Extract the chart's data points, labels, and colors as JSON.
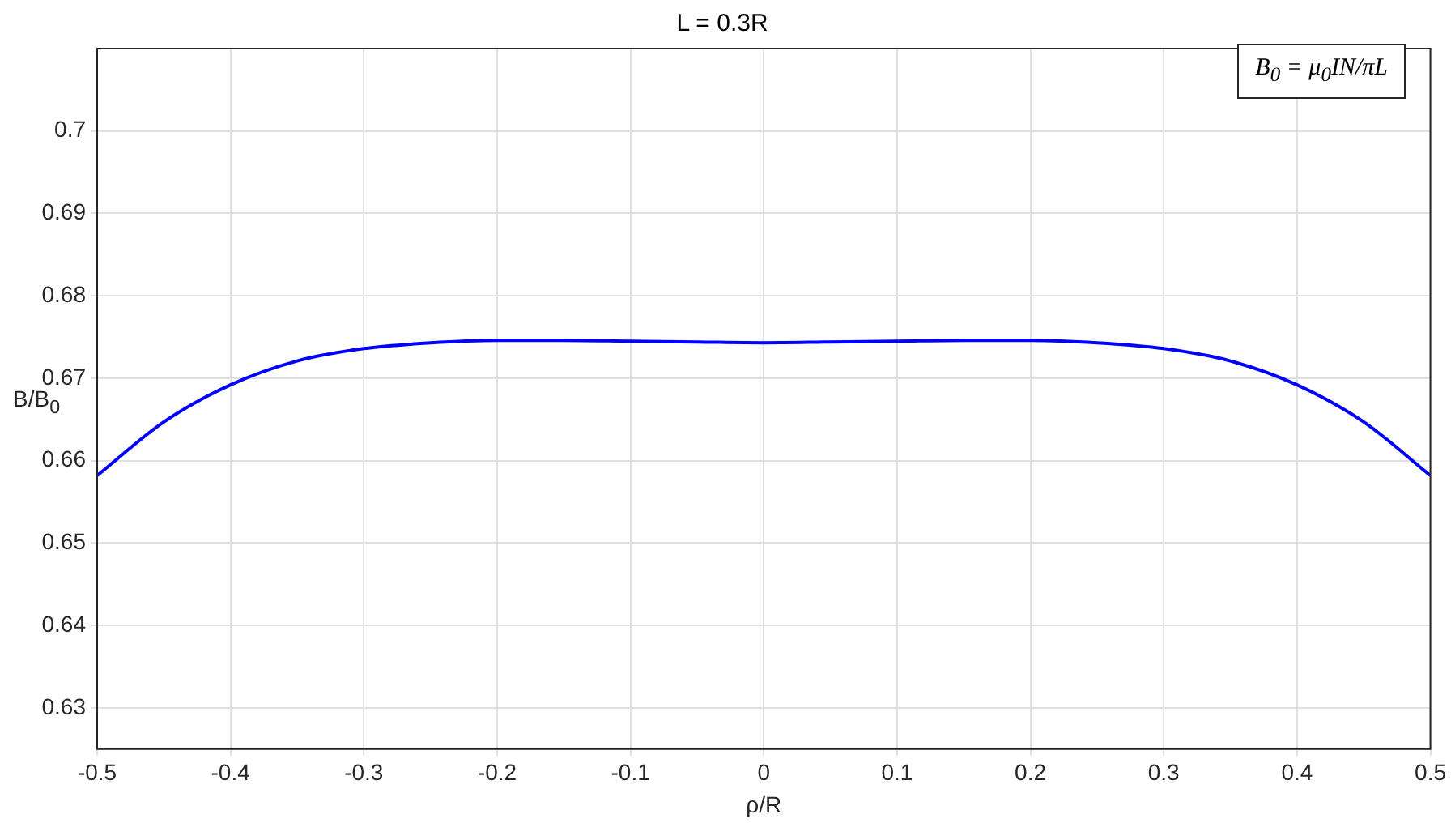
{
  "chart_data": {
    "type": "line",
    "title": "L = 0.3R",
    "xlabel": "ρ/R",
    "ylabel": "B/B$_{0}$",
    "annotations": [
      "B$_{0}$ = μ$_{0}$IN/πL"
    ],
    "x": [
      -0.5,
      -0.45,
      -0.4,
      -0.35,
      -0.3,
      -0.25,
      -0.2,
      -0.15,
      -0.1,
      -0.05,
      0,
      0.05,
      0.1,
      0.15,
      0.2,
      0.25,
      0.3,
      0.35,
      0.4,
      0.45,
      0.5
    ],
    "series": [
      {
        "color": "#0000ff",
        "values": [
          0.6582,
          0.6647,
          0.6692,
          0.6721,
          0.6736,
          0.6743,
          0.6746,
          0.6746,
          0.6745,
          0.6744,
          0.6743,
          0.6744,
          0.6745,
          0.6746,
          0.6746,
          0.6743,
          0.6736,
          0.6721,
          0.6692,
          0.6647,
          0.6582
        ]
      }
    ],
    "xlim": [
      -0.5,
      0.5
    ],
    "xticks": [
      -0.5,
      -0.4,
      -0.3,
      -0.2,
      -0.1,
      0,
      0.1,
      0.2,
      0.3,
      0.4,
      0.5
    ],
    "ylim": [
      0.625,
      0.71
    ],
    "yticks": [
      0.63,
      0.64,
      0.65,
      0.66,
      0.67,
      0.68,
      0.69,
      0.7
    ],
    "grid": true,
    "legend": false,
    "marker": "none",
    "line_style": "solid"
  }
}
